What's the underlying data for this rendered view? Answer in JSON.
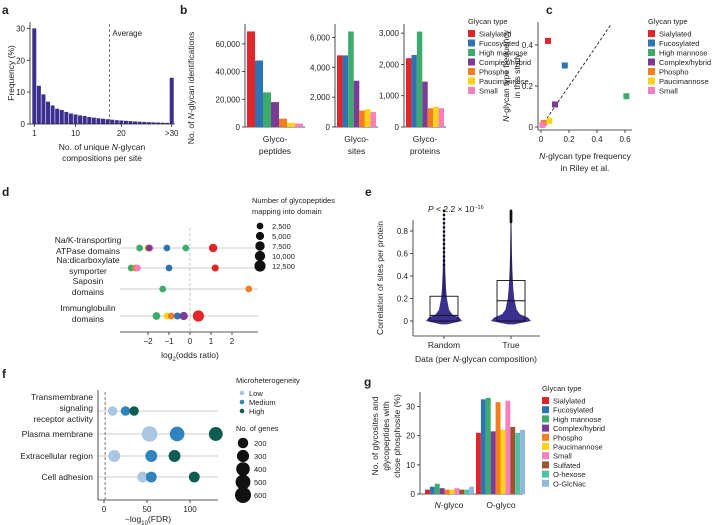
{
  "panels": {
    "a": {
      "label": "a",
      "ylabel": "Frequency (%)",
      "xlabel_pre": "No. of unique ",
      "xlabel_it": "N",
      "xlabel_post": "-glycan",
      "xlabel2": "compositions per site",
      "xticks": [
        "1",
        "10",
        "20",
        ">30"
      ],
      "yticks": [
        "0",
        "10",
        "20",
        "30"
      ],
      "average_label": "Average",
      "average_value": 17.4,
      "bar_color": "#3b2f8f",
      "values": [
        30,
        12,
        9.3,
        7,
        5.8,
        4.8,
        4.4,
        3.8,
        3.3,
        3.0,
        2.7,
        2.5,
        2.2,
        2.0,
        1.8,
        1.65,
        1.5,
        1.35,
        1.2,
        1.1,
        1.0,
        0.9,
        0.8,
        0.72,
        0.65,
        0.58,
        0.52,
        0.46,
        0.4,
        0.35,
        14.5
      ],
      "ylim": [
        0,
        32
      ]
    },
    "b": {
      "label": "b",
      "ylabel": "No. of N-glycan identifications",
      "ylabel_pre": "No. of ",
      "ylabel_it": "N",
      "ylabel_post": "-glycan identifications",
      "subplots": [
        {
          "xlabel1": "Glyco-",
          "xlabel2": "peptides",
          "ymax": 70000,
          "yticks": [
            0,
            20000,
            40000,
            60000
          ],
          "yticklabels": [
            "0",
            "20,000",
            "40,000",
            "60,000"
          ],
          "values": [
            69000,
            48000,
            25000,
            18000,
            6000,
            3000,
            2500
          ]
        },
        {
          "xlabel1": "Glyco-",
          "xlabel2": "sites",
          "ymax": 6500,
          "yticks": [
            0,
            2000,
            4000,
            6000
          ],
          "yticklabels": [
            "0",
            "2,000",
            "4,000",
            "6,000"
          ],
          "values": [
            4800,
            4800,
            6400,
            3100,
            1100,
            1200,
            1000
          ]
        },
        {
          "xlabel1": "Glyco-",
          "xlabel2": "proteins",
          "ymax": 3100,
          "yticks": [
            0,
            1000,
            2000,
            3000
          ],
          "yticklabels": [
            "0",
            "1,000",
            "2,000",
            "3,000"
          ],
          "values": [
            2200,
            2300,
            3050,
            1450,
            600,
            650,
            600
          ]
        }
      ],
      "legend_title": "Glycan type",
      "types": [
        "Sialylated",
        "Fucosylated",
        "High mannose",
        "Complex/hybrid",
        "Phospho",
        "Paucimannose",
        "Small"
      ],
      "colors": [
        "#e0262b",
        "#2e74b5",
        "#3cab6b",
        "#7b3b96",
        "#f47d20",
        "#ffd21a",
        "#f77fbd"
      ]
    },
    "c": {
      "label": "c",
      "ylabel1_pre": "",
      "ylabel1_it": "N",
      "ylabel1_post": "-glycan type frequency",
      "ylabel2": "in this study",
      "xlabel1_it": "N",
      "xlabel1_post": "-glycan type frequency",
      "xlabel2": "in Riley et al.",
      "xticks": [
        "0",
        "0.2",
        "0.4",
        "0.6"
      ],
      "yticks": [
        "0",
        "0.2",
        "0.4"
      ],
      "legend_title": "Glycan type",
      "points": [
        {
          "type": "Sialylated",
          "x": 0.05,
          "y": 0.42
        },
        {
          "type": "Fucosylated",
          "x": 0.17,
          "y": 0.3
        },
        {
          "type": "High mannose",
          "x": 0.61,
          "y": 0.15
        },
        {
          "type": "Complex/hybrid",
          "x": 0.1,
          "y": 0.11
        },
        {
          "type": "Phospho",
          "x": 0.02,
          "y": 0.02
        },
        {
          "type": "Paucimannose",
          "x": 0.06,
          "y": 0.03
        },
        {
          "type": "Small",
          "x": 0.01,
          "y": 0.01
        }
      ]
    },
    "d": {
      "label": "d",
      "xlabel_pre": "log",
      "xlabel_sub": "2",
      "xlabel_post": "(odds ratio)",
      "xticks": [
        -2,
        -1,
        0,
        1,
        2
      ],
      "xticklabels": [
        "−2",
        "−1",
        "0",
        "1",
        "2"
      ],
      "categories": [
        {
          "l1": "Na/K-transporting",
          "l2": "ATPase domains"
        },
        {
          "l1": "Na:dicarboxylate",
          "l2": "symporter"
        },
        {
          "l1": "Saposin",
          "l2": "domains"
        },
        {
          "l1": "Immunglobulin",
          "l2": "domains"
        }
      ],
      "points": [
        {
          "row": 0,
          "x": -2.4,
          "size": 2500,
          "type": "High mannose"
        },
        {
          "row": 0,
          "x": -2.0,
          "size": 2500,
          "type": "Paucimannose"
        },
        {
          "row": 0,
          "x": -1.9,
          "size": 2500,
          "type": "Small"
        },
        {
          "row": 0,
          "x": -1.95,
          "size": 2500,
          "type": "Complex/hybrid"
        },
        {
          "row": 0,
          "x": -1.1,
          "size": 2500,
          "type": "Fucosylated"
        },
        {
          "row": 0,
          "x": -0.2,
          "size": 2500,
          "type": "High mannose"
        },
        {
          "row": 0,
          "x": 1.1,
          "size": 5500,
          "type": "Sialylated"
        },
        {
          "row": 1,
          "x": -2.8,
          "size": 2500,
          "type": "High mannose"
        },
        {
          "row": 1,
          "x": -2.6,
          "size": 2500,
          "type": "Phospho"
        },
        {
          "row": 1,
          "x": -2.5,
          "size": 2500,
          "type": "Small"
        },
        {
          "row": 1,
          "x": -1.0,
          "size": 2500,
          "type": "Fucosylated"
        },
        {
          "row": 1,
          "x": 1.2,
          "size": 3000,
          "type": "Sialylated"
        },
        {
          "row": 2,
          "x": -1.3,
          "size": 2500,
          "type": "High mannose"
        },
        {
          "row": 2,
          "x": 2.8,
          "size": 2500,
          "type": "Phospho"
        },
        {
          "row": 3,
          "x": -1.6,
          "size": 4000,
          "type": "High mannose"
        },
        {
          "row": 3,
          "x": -1.1,
          "size": 2500,
          "type": "Paucimannose"
        },
        {
          "row": 3,
          "x": -0.9,
          "size": 2500,
          "type": "Phospho"
        },
        {
          "row": 3,
          "x": -0.6,
          "size": 3000,
          "type": "Fucosylated"
        },
        {
          "row": 3,
          "x": -0.3,
          "size": 5000,
          "type": "Complex/hybrid"
        },
        {
          "row": 3,
          "x": 0.4,
          "size": 12500,
          "type": "Sialylated"
        }
      ],
      "size_legend_title1": "Number of glycopeptides",
      "size_legend_title2": "mapping into domain",
      "size_legend": [
        "2,500",
        "5,000",
        "7,500",
        "10,000",
        "12,500"
      ],
      "size_values": [
        2500,
        5000,
        7500,
        10000,
        12500
      ]
    },
    "e": {
      "label": "e",
      "pvalue_pre": "P",
      "pvalue_post": " < 2.2 × 10",
      "pvalue_exp": "−16",
      "ylabel": "Correlation of sites per protein",
      "yticks": [
        "0",
        "0.2",
        "0.4",
        "0.6",
        "0.8"
      ],
      "groups": [
        "Random",
        "True"
      ],
      "xlabel_pre": "Data (per ",
      "xlabel_it": "N",
      "xlabel_post": "-glycan composition)",
      "box_random": {
        "q1": 0.0,
        "median": 0.05,
        "q3": 0.22,
        "whisker_high": 0.5,
        "max": 0.98
      },
      "box_true": {
        "q1": 0.0,
        "median": 0.18,
        "q3": 0.36,
        "whisker_high": 0.88,
        "max": 0.98
      },
      "violin_color": "#3b2f8f"
    },
    "f": {
      "label": "f",
      "xlabel_pre": "−log",
      "xlabel_sub": "10",
      "xlabel_post": "(FDR)",
      "xticks": [
        "0",
        "50",
        "100"
      ],
      "categories": [
        {
          "l1": "Transmembrane",
          "l2": "signaling",
          "l3": "receptor activity"
        },
        {
          "l1": "Plasma membrane"
        },
        {
          "l1": "Extracellular region"
        },
        {
          "l1": "Cell adhesion"
        }
      ],
      "points": [
        {
          "row": 0,
          "x": 10,
          "genes": 150,
          "level": "Low"
        },
        {
          "row": 0,
          "x": 25,
          "genes": 150,
          "level": "Medium"
        },
        {
          "row": 0,
          "x": 35,
          "genes": 150,
          "level": "High"
        },
        {
          "row": 1,
          "x": 53,
          "genes": 560,
          "level": "Low"
        },
        {
          "row": 1,
          "x": 85,
          "genes": 480,
          "level": "Medium"
        },
        {
          "row": 1,
          "x": 130,
          "genes": 420,
          "level": "High"
        },
        {
          "row": 2,
          "x": 12,
          "genes": 280,
          "level": "Low"
        },
        {
          "row": 2,
          "x": 55,
          "genes": 280,
          "level": "Medium"
        },
        {
          "row": 2,
          "x": 82,
          "genes": 280,
          "level": "High"
        },
        {
          "row": 3,
          "x": 45,
          "genes": 220,
          "level": "Low"
        },
        {
          "row": 3,
          "x": 55,
          "genes": 220,
          "level": "Medium"
        },
        {
          "row": 3,
          "x": 105,
          "genes": 220,
          "level": "High"
        }
      ],
      "hetero_legend_title": "Microheterogeneity",
      "hetero_levels": [
        "Low",
        "Medium",
        "High"
      ],
      "hetero_colors": [
        "#a9c6e2",
        "#3183bd",
        "#0d5e4e"
      ],
      "genes_legend_title": "No. of genes",
      "genes_legend": [
        "200",
        "300",
        "400",
        "500",
        "600"
      ],
      "genes_values": [
        200,
        300,
        400,
        500,
        600
      ]
    },
    "g": {
      "label": "g",
      "ylabel1": "No. of glycosites and",
      "ylabel2": "glycopeptides with",
      "ylabel3": "close phosphosite (%)",
      "yticks": [
        "0",
        "10",
        "20",
        "30"
      ],
      "groups": [
        {
          "it": "N",
          "rest": "-glyco"
        },
        {
          "it": "",
          "rest": "O-glyco"
        }
      ],
      "legend_title": "Glycan type",
      "types": [
        "Sialylated",
        "Fucosylated",
        "High mannose",
        "Complex/hybrid",
        "Phospho",
        "Paucimannose",
        "Small",
        "Sulfated",
        "O-hexose",
        "O-GlcNac"
      ],
      "colors": [
        "#e0262b",
        "#2e74b5",
        "#3cab6b",
        "#7b3b96",
        "#f47d20",
        "#ffd21a",
        "#f77fbd",
        "#a0522d",
        "#4fc3a1",
        "#93b8dc"
      ],
      "values_n": [
        1.5,
        2.5,
        3.5,
        2.0,
        1.5,
        1.5,
        2.0,
        1.5,
        1.5,
        2.5
      ],
      "values_o": [
        21,
        32.5,
        33,
        21.5,
        31.5,
        22,
        32,
        23,
        21,
        22
      ]
    }
  },
  "chart_data": [
    {
      "type": "bar",
      "title": "a",
      "ylabel": "Frequency (%)",
      "xlabel": "No. of unique N-glycan compositions per site",
      "categories": [
        "1..30",
        ">30"
      ],
      "note": "histogram 1 to >30, average line at about 17",
      "ylim": [
        0,
        32
      ]
    },
    {
      "type": "bar",
      "title": "b",
      "categories": [
        "Glycopeptides",
        "Glycosites",
        "Glycoproteins"
      ],
      "ylabel": "No. of N-glycan identifications"
    },
    {
      "type": "scatter",
      "title": "c",
      "xlabel": "N-glycan type frequency in Riley et al.",
      "ylabel": "N-glycan type frequency in this study"
    },
    {
      "type": "scatter",
      "title": "d",
      "xlabel": "log2(odds ratio)"
    },
    {
      "type": "box",
      "title": "e",
      "ylabel": "Correlation of sites per protein",
      "categories": [
        "Random",
        "True"
      ]
    },
    {
      "type": "scatter",
      "title": "f",
      "xlabel": "-log10(FDR)"
    },
    {
      "type": "bar",
      "title": "g",
      "categories": [
        "N-glyco",
        "O-glyco"
      ],
      "ylabel": "No. of glycosites and glycopeptides with close phosphosite (%)"
    }
  ]
}
